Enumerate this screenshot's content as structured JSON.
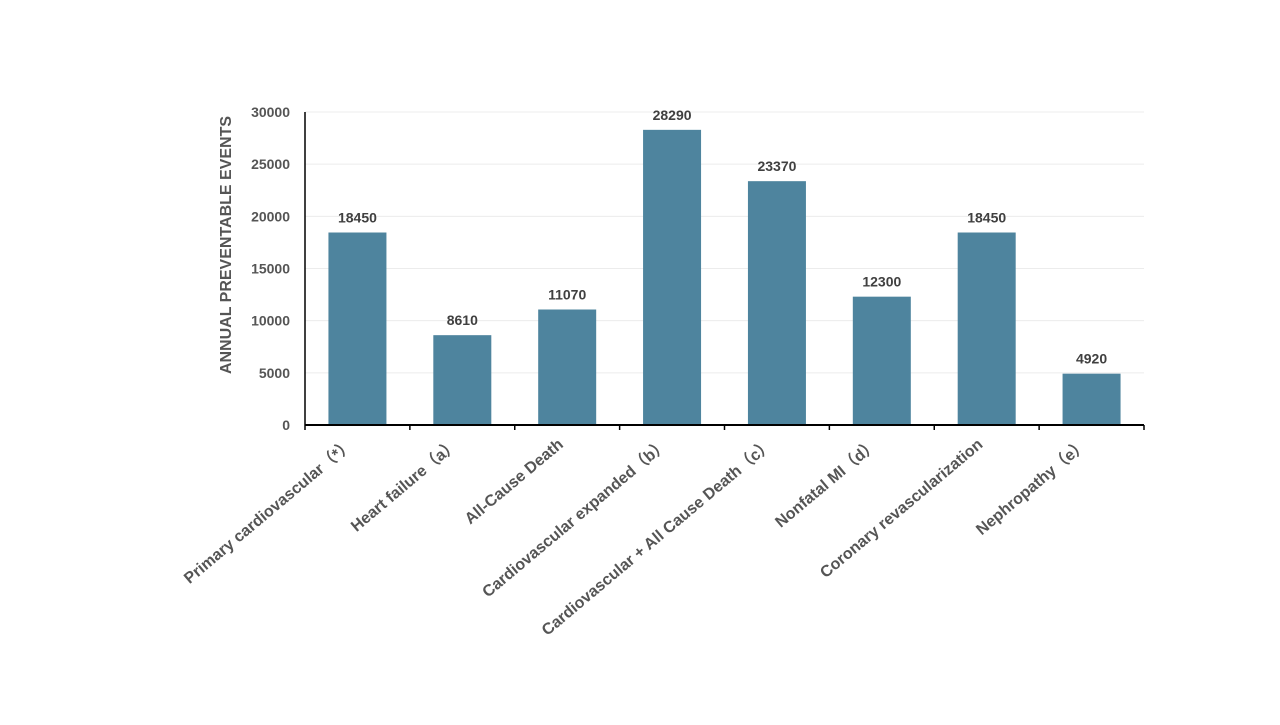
{
  "chart_data": {
    "type": "bar",
    "title": "",
    "xlabel": "",
    "ylabel": "ANNUAL PREVENTABLE EVENTS",
    "ylim": [
      0,
      30000
    ],
    "yticks": [
      0,
      5000,
      10000,
      15000,
      20000,
      25000,
      30000
    ],
    "grid": true,
    "legend": "none",
    "bar_color": "#4e849e",
    "categories": [
      "Primary cardiovascular（*）",
      "Heart failure（a）",
      "All-Cause Death",
      "Cardiovascular expanded（b）",
      "Cardiovascular + All Cause Death（c）",
      "Nonfatal MI（d）",
      "Coronary revascularization",
      "Nephropathy（e）"
    ],
    "values": [
      18450,
      8610,
      11070,
      28290,
      23370,
      12300,
      18450,
      4920
    ]
  }
}
